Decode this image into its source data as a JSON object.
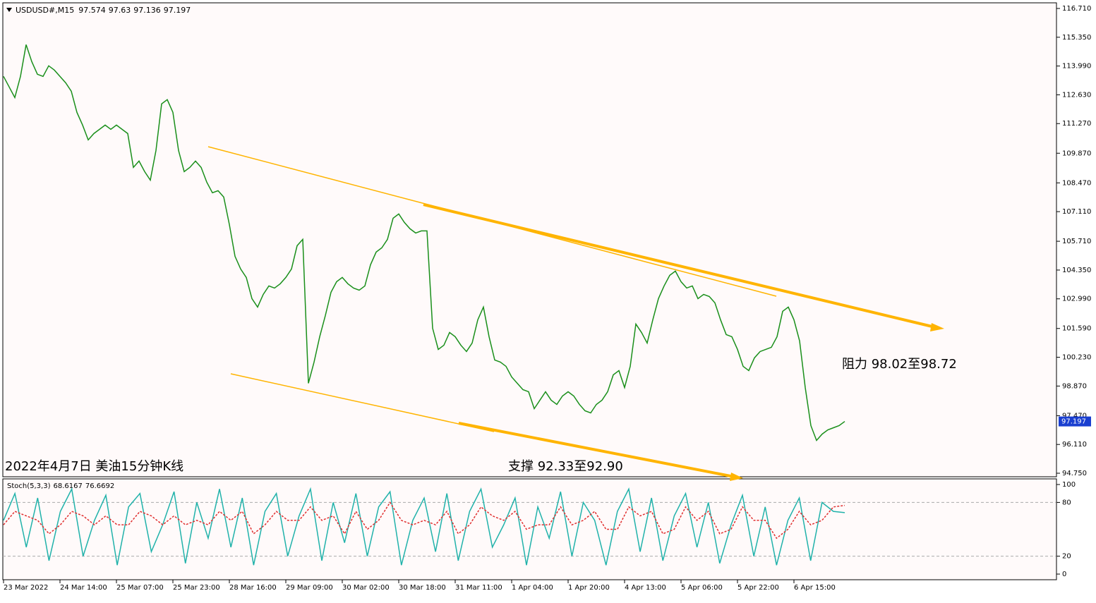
{
  "chart_data": [
    {
      "type": "line",
      "symbol": "USDUSD#,M15",
      "open": 97.574,
      "high": 97.63,
      "low": 97.136,
      "close": 97.197,
      "title": "2022年4月7日 美油15分钟K线",
      "annotations": [
        "阻力 98.02至98.72",
        "支撑 92.33至92.90"
      ],
      "categories": [
        "23 Mar 2022",
        null,
        null,
        null,
        null,
        null,
        null,
        null,
        null,
        null,
        "24 Mar 14:00",
        null,
        null,
        null,
        null,
        null,
        null,
        null,
        null,
        null,
        "25 Mar 07:00",
        null,
        null,
        null,
        null,
        null,
        null,
        null,
        null,
        null,
        "25 Mar 23:00",
        null,
        null,
        null,
        null,
        null,
        null,
        null,
        null,
        null,
        "28 Mar 16:00",
        null,
        null,
        null,
        null,
        null,
        null,
        null,
        null,
        null,
        "29 Mar 09:00",
        null,
        null,
        null,
        null,
        null,
        null,
        null,
        null,
        null,
        "30 Mar 02:00",
        null,
        null,
        null,
        null,
        null,
        null,
        null,
        null,
        null,
        "30 Mar 18:00",
        null,
        null,
        null,
        null,
        null,
        null,
        null,
        null,
        null,
        "31 Mar 11:00",
        null,
        null,
        null,
        null,
        null,
        null,
        null,
        null,
        null,
        "1 Apr 04:00",
        null,
        null,
        null,
        null,
        null,
        null,
        null,
        null,
        null,
        "1 Apr 20:00",
        null,
        null,
        null,
        null,
        null,
        null,
        null,
        null,
        null,
        "4 Apr 13:00",
        null,
        null,
        null,
        null,
        null,
        null,
        null,
        null,
        null,
        "5 Apr 06:00",
        null,
        null,
        null,
        null,
        null,
        null,
        null,
        null,
        null,
        "5 Apr 22:00",
        null,
        null,
        null,
        null,
        null,
        null,
        null,
        null,
        null,
        "6 Apr 15:00",
        null,
        null,
        null,
        null,
        null,
        null,
        null,
        null,
        null
      ],
      "color": "#1a8f1a",
      "values": [
        113.5,
        113.0,
        112.5,
        113.5,
        115.0,
        114.2,
        113.6,
        113.5,
        114.0,
        113.8,
        113.5,
        113.2,
        112.8,
        111.8,
        111.2,
        110.5,
        110.8,
        111.0,
        111.2,
        111.0,
        111.2,
        111.0,
        110.8,
        109.2,
        109.5,
        109.0,
        108.6,
        110.0,
        112.2,
        112.4,
        111.8,
        110.0,
        109.0,
        109.2,
        109.5,
        109.2,
        108.5,
        108.0,
        108.1,
        107.8,
        106.5,
        105.0,
        104.4,
        104.0,
        103.0,
        102.6,
        103.2,
        103.6,
        103.5,
        103.7,
        104.0,
        104.4,
        105.5,
        105.8,
        99.0,
        100.0,
        101.2,
        102.2,
        103.3,
        103.8,
        104.0,
        103.7,
        103.5,
        103.4,
        103.6,
        104.6,
        105.2,
        105.4,
        105.8,
        106.8,
        107.0,
        106.6,
        106.3,
        106.1,
        106.2,
        106.2,
        101.6,
        100.6,
        100.8,
        101.4,
        101.2,
        100.8,
        100.5,
        100.9,
        102.0,
        102.6,
        101.2,
        100.1,
        100.0,
        99.8,
        99.3,
        99.0,
        98.7,
        98.6,
        97.8,
        98.2,
        98.6,
        98.2,
        98.0,
        98.4,
        98.6,
        98.4,
        98.0,
        97.7,
        97.6,
        98.0,
        98.2,
        98.6,
        99.4,
        99.6,
        98.8,
        99.8,
        101.8,
        101.4,
        100.9,
        102.0,
        103.0,
        103.6,
        104.1,
        104.3,
        103.8,
        103.5,
        103.6,
        103.0,
        103.2,
        103.1,
        102.8,
        102.0,
        101.3,
        101.2,
        100.6,
        99.8,
        99.6,
        100.2,
        100.5,
        100.6,
        100.7,
        101.2,
        102.4,
        102.6,
        102.0,
        101.0,
        98.8,
        97.0,
        96.3,
        96.6,
        96.8,
        96.9,
        97.0,
        97.197
      ],
      "ylim": [
        94.617,
        116.943
      ],
      "yticks": [
        {
          "value": 116.71,
          "label": "116.710"
        },
        {
          "value": 115.35,
          "label": "115.350"
        },
        {
          "value": 113.99,
          "label": "113.990"
        },
        {
          "value": 112.63,
          "label": "112.630"
        },
        {
          "value": 111.27,
          "label": "111.270"
        },
        {
          "value": 109.87,
          "label": "109.870"
        },
        {
          "value": 108.47,
          "label": "108.470"
        },
        {
          "value": 107.11,
          "label": "107.110"
        },
        {
          "value": 105.71,
          "label": "105.710"
        },
        {
          "value": 104.35,
          "label": "104.350"
        },
        {
          "value": 102.99,
          "label": "102.990"
        },
        {
          "value": 101.59,
          "label": "101.590"
        },
        {
          "value": 100.23,
          "label": "100.230"
        },
        {
          "value": 98.87,
          "label": "98.870"
        },
        {
          "value": 97.47,
          "label": "97.470"
        },
        {
          "value": 96.11,
          "label": "96.110"
        },
        {
          "value": 94.75,
          "label": "94.750"
        }
      ]
    },
    {
      "type": "line",
      "title": "Stoch(5,3,3)",
      "series": [
        {
          "name": "%K",
          "color": "#20b2aa",
          "values": [
            60,
            90,
            30,
            85,
            15,
            70,
            95,
            20,
            60,
            88,
            10,
            75,
            90,
            25,
            55,
            92,
            12,
            80,
            40,
            95,
            30,
            85,
            10,
            70,
            90,
            20,
            65,
            95,
            15,
            80,
            35,
            90,
            20,
            75,
            92,
            10,
            60,
            85,
            25,
            90,
            15,
            70,
            95,
            30,
            55,
            85,
            10,
            75,
            40,
            92,
            20,
            80,
            60,
            10,
            70,
            95,
            25,
            85,
            15,
            65,
            90,
            30,
            80,
            12,
            55,
            88,
            20,
            75,
            10,
            60,
            85,
            15,
            80,
            70,
            68.6167
          ]
        },
        {
          "name": "%D",
          "color": "#e03030",
          "values": [
            55,
            70,
            65,
            60,
            45,
            55,
            70,
            65,
            55,
            65,
            55,
            55,
            70,
            65,
            55,
            65,
            55,
            60,
            55,
            70,
            60,
            70,
            45,
            55,
            70,
            60,
            60,
            75,
            60,
            65,
            45,
            70,
            50,
            60,
            80,
            60,
            55,
            60,
            55,
            70,
            45,
            55,
            75,
            65,
            60,
            70,
            50,
            55,
            55,
            75,
            55,
            60,
            70,
            50,
            50,
            75,
            65,
            70,
            45,
            50,
            75,
            60,
            70,
            45,
            50,
            75,
            60,
            60,
            40,
            50,
            70,
            55,
            60,
            75,
            76.6692
          ]
        }
      ],
      "ylim": [
        -6.3,
        106.3
      ],
      "yticks": [
        0,
        20,
        80,
        100
      ],
      "levels": [
        20,
        80
      ]
    }
  ]
}
